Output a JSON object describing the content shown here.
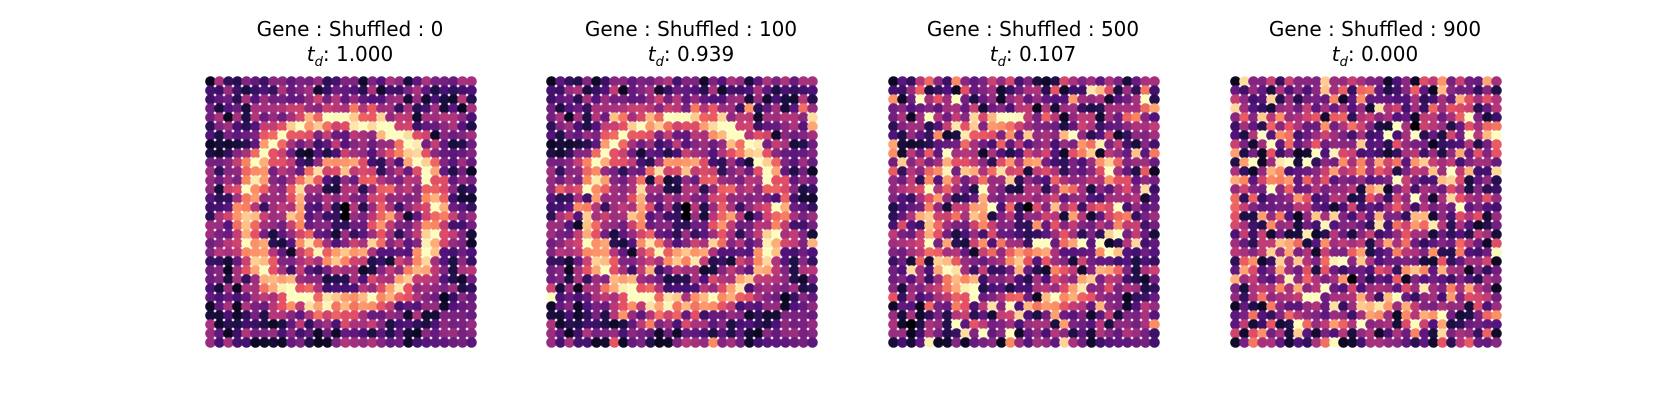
{
  "chart_data": {
    "type": "scatter",
    "colormap": "magma",
    "grid_size": 30,
    "panels": [
      {
        "title": "Gene : Shuffled : 0",
        "td_label": "t",
        "td_sub": "d",
        "td_value": ": 1.000",
        "shuffled": 0,
        "td": 1.0
      },
      {
        "title": "Gene : Shuffled : 100",
        "td_label": "t",
        "td_sub": "d",
        "td_value": ": 0.939",
        "shuffled": 100,
        "td": 0.939
      },
      {
        "title": "Gene : Shuffled : 500",
        "td_label": "t",
        "td_sub": "d",
        "td_value": ": 0.107",
        "shuffled": 500,
        "td": 0.107
      },
      {
        "title": "Gene : Shuffled : 900",
        "td_label": "t",
        "td_sub": "d",
        "td_value": ": 0.000",
        "shuffled": 900,
        "td": 0.0
      }
    ]
  }
}
